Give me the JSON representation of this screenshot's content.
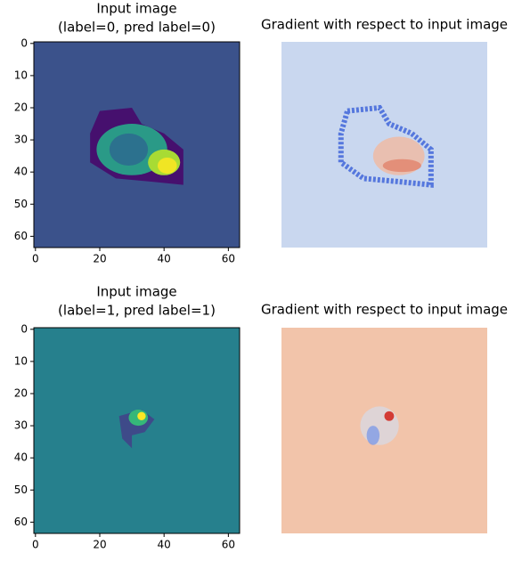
{
  "chart_data": [
    {
      "type": "image",
      "title": [
        "Input image",
        "(label=0, pred label=0)"
      ],
      "background": "#3b528b",
      "xlim": [
        -0.5,
        63.5
      ],
      "ylim": [
        63.5,
        -0.5
      ],
      "xticks": [
        0,
        20,
        40,
        60
      ],
      "yticks": [
        0,
        10,
        20,
        30,
        40,
        50,
        60
      ]
    },
    {
      "type": "gradient",
      "title": [
        "Gradient with respect to input image"
      ],
      "background": "#c9d7ef"
    },
    {
      "type": "image",
      "title": [
        "Input image",
        "(label=1, pred label=1)"
      ],
      "background": "#26808d",
      "xlim": [
        -0.5,
        63.5
      ],
      "ylim": [
        63.5,
        -0.5
      ],
      "xticks": [
        0,
        20,
        40,
        60
      ],
      "yticks": [
        0,
        10,
        20,
        30,
        40,
        50,
        60
      ]
    },
    {
      "type": "gradient",
      "title": [
        "Gradient with respect to input image"
      ],
      "background": "#f2c4aa"
    }
  ]
}
